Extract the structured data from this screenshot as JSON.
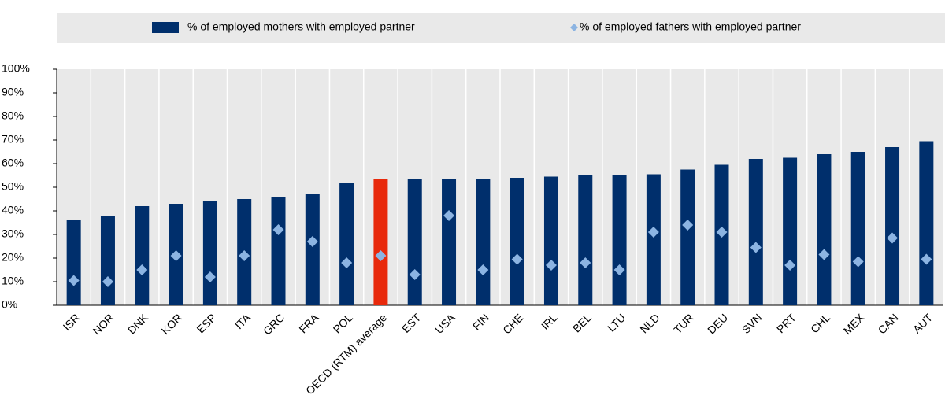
{
  "chart_data": {
    "type": "bar",
    "categories": [
      "ISR",
      "NOR",
      "DNK",
      "KOR",
      "ESP",
      "ITA",
      "GRC",
      "FRA",
      "POL",
      "OECD (RTM) average",
      "EST",
      "USA",
      "FIN",
      "CHE",
      "IRL",
      "BEL",
      "LTU",
      "NLD",
      "TUR",
      "DEU",
      "SVN",
      "PRT",
      "CHL",
      "MEX",
      "CAN",
      "AUT"
    ],
    "series": [
      {
        "name": "% of employed mothers with employed partner",
        "color": "#002f6c",
        "highlight_color": "#e8290b",
        "highlight_category": "OECD (RTM) average",
        "marker": "bar",
        "values": [
          36,
          38,
          42,
          43,
          44,
          45,
          46,
          47,
          52,
          53.5,
          53.5,
          53.5,
          53.5,
          54,
          54.5,
          55,
          55,
          55.5,
          57.5,
          59.5,
          62,
          62.5,
          64,
          65,
          67,
          69.5
        ]
      },
      {
        "name": "% of employed fathers with employed partner",
        "color": "#8cb4e2",
        "marker": "diamond",
        "values": [
          10.5,
          10,
          15,
          21,
          12,
          21,
          32,
          27,
          18,
          21,
          13,
          38,
          15,
          19.5,
          17,
          18,
          15,
          31,
          34,
          31,
          24.5,
          17,
          21.5,
          18.5,
          28.5,
          19.5
        ]
      }
    ],
    "ylim": [
      0,
      100
    ],
    "yticks": [
      {
        "value": 0,
        "label": "0%"
      },
      {
        "value": 10,
        "label": "10%"
      },
      {
        "value": 20,
        "label": "20%"
      },
      {
        "value": 30,
        "label": "30%"
      },
      {
        "value": 40,
        "label": "40%"
      },
      {
        "value": 50,
        "label": "50%"
      },
      {
        "value": 60,
        "label": "60%"
      },
      {
        "value": 70,
        "label": "70%"
      },
      {
        "value": 80,
        "label": "80%"
      },
      {
        "value": 90,
        "label": "90%"
      },
      {
        "value": 100,
        "label": "100%"
      }
    ],
    "legend": "top"
  }
}
